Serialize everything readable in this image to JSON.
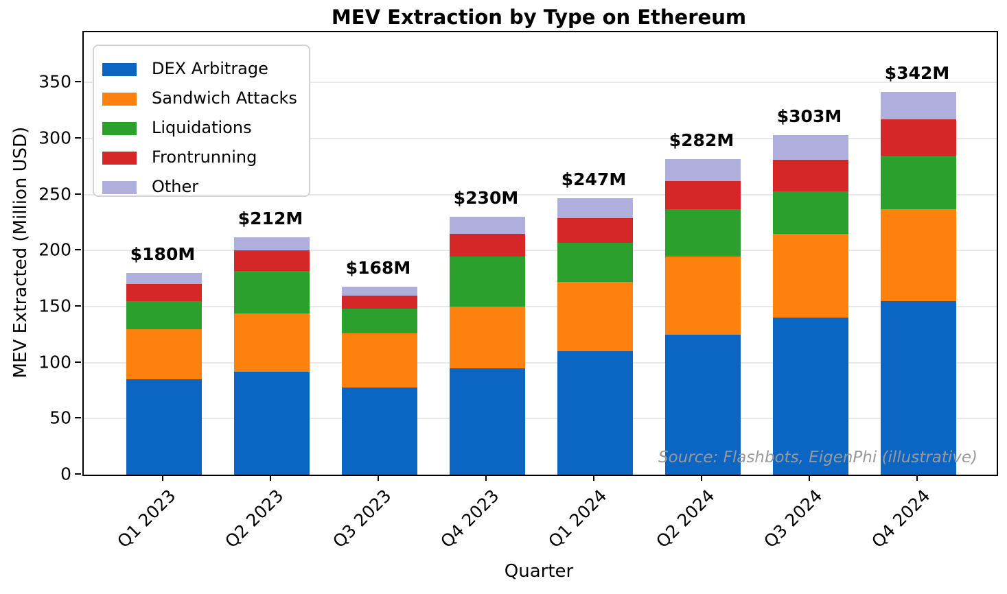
{
  "figure": {
    "background": "#ffffff"
  },
  "chart_data": {
    "type": "bar",
    "stacked": true,
    "title": "MEV Extraction by Type on Ethereum",
    "xlabel": "Quarter",
    "ylabel": "MEV Extracted (Million USD)",
    "ylim": [
      0,
      395
    ],
    "yticks": [
      0,
      50,
      100,
      150,
      200,
      250,
      300,
      350
    ],
    "grid": true,
    "legend_position": "upper left",
    "categories": [
      "Q1 2023",
      "Q2 2023",
      "Q3 2023",
      "Q4 2023",
      "Q1 2024",
      "Q2 2024",
      "Q3 2024",
      "Q4 2024"
    ],
    "series": [
      {
        "name": "DEX Arbitrage",
        "color": "#0a66c2",
        "values": [
          85,
          92,
          78,
          95,
          110,
          125,
          140,
          155
        ]
      },
      {
        "name": "Sandwich Attacks",
        "color": "#fd810e",
        "values": [
          45,
          52,
          48,
          55,
          62,
          70,
          75,
          82
        ]
      },
      {
        "name": "Liquidations",
        "color": "#2ca02c",
        "values": [
          25,
          38,
          22,
          45,
          35,
          42,
          38,
          48
        ]
      },
      {
        "name": "Frontrunning",
        "color": "#d62728",
        "values": [
          15,
          18,
          12,
          20,
          22,
          25,
          28,
          32
        ]
      },
      {
        "name": "Other",
        "color": "#b0aedd",
        "values": [
          10,
          12,
          8,
          15,
          18,
          20,
          22,
          25
        ]
      }
    ],
    "totals": [
      180,
      212,
      168,
      230,
      247,
      282,
      303,
      342
    ],
    "total_labels": [
      "$180M",
      "$212M",
      "$168M",
      "$230M",
      "$247M",
      "$282M",
      "$303M",
      "$342M"
    ],
    "annotation": "Source: Flashbots, EigenPhi (illustrative)"
  },
  "colors": {
    "grid": "#e8e8e8",
    "axis": "#000000",
    "annotation_text": "#999999"
  }
}
